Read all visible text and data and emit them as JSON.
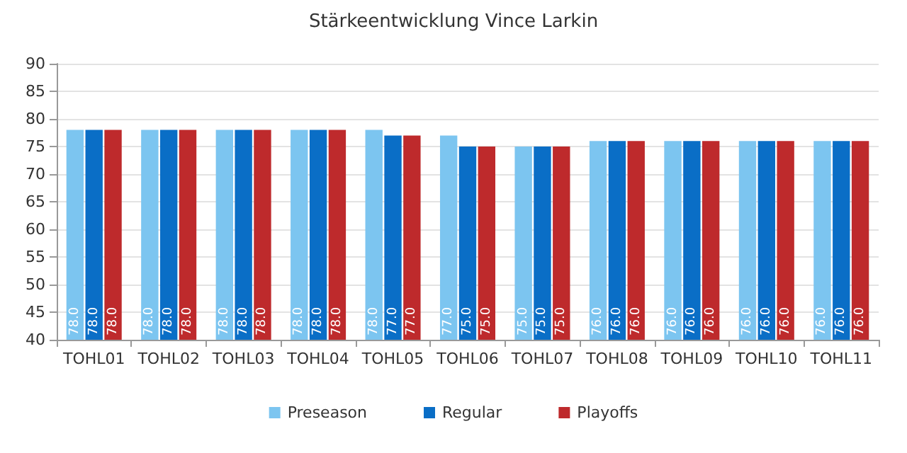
{
  "chart_data": {
    "type": "bar",
    "title": "Stärkeentwicklung Vince Larkin",
    "categories": [
      "TOHL01",
      "TOHL02",
      "TOHL03",
      "TOHL04",
      "TOHL05",
      "TOHL06",
      "TOHL07",
      "TOHL08",
      "TOHL09",
      "TOHL10",
      "TOHL11"
    ],
    "series": [
      {
        "name": "Preseason",
        "color": "#7cc5f0",
        "values": [
          78,
          78,
          78,
          78,
          78,
          77,
          75,
          76,
          76,
          76,
          76
        ],
        "value_labels": [
          "78.0",
          "78.0",
          "78.0",
          "78.0",
          "78.0",
          "77.0",
          "75.0",
          "76.0",
          "76.0",
          "76.0",
          "76.0"
        ]
      },
      {
        "name": "Regular",
        "color": "#0a6ec6",
        "values": [
          78,
          78,
          78,
          78,
          77,
          75,
          75,
          76,
          76,
          76,
          76
        ],
        "value_labels": [
          "78.0",
          "78.0",
          "78.0",
          "78.0",
          "77.0",
          "75.0",
          "75.0",
          "76.0",
          "76.0",
          "76.0",
          "76.0"
        ]
      },
      {
        "name": "Playoffs",
        "color": "#be2a2c",
        "values": [
          78,
          78,
          78,
          78,
          77,
          75,
          75,
          76,
          76,
          76,
          76
        ],
        "value_labels": [
          "78.0",
          "78.0",
          "78.0",
          "78.0",
          "77.0",
          "75.0",
          "75.0",
          "76.0",
          "76.0",
          "76.0",
          "76.0"
        ]
      }
    ],
    "ylim": [
      40,
      90
    ],
    "yticks": [
      40,
      45,
      50,
      55,
      60,
      65,
      70,
      75,
      80,
      85,
      90
    ],
    "grid": "y",
    "legend": "bottom"
  }
}
